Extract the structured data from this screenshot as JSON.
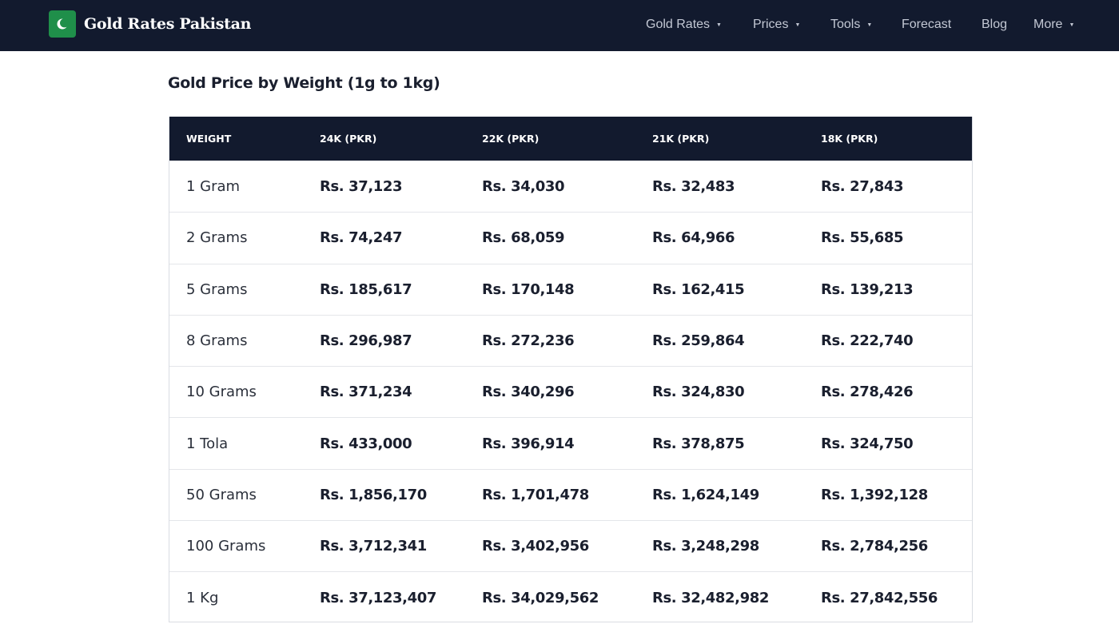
{
  "brand": {
    "name": "Gold Rates Pakistan",
    "logo_icon": "crescent-icon",
    "logo_color": "#1f8f4a"
  },
  "nav": {
    "items": [
      {
        "label": "Gold Rates",
        "dropdown": true
      },
      {
        "label": "Prices",
        "dropdown": true
      },
      {
        "label": "Tools",
        "dropdown": true
      },
      {
        "label": "Forecast",
        "dropdown": false
      },
      {
        "label": "Blog",
        "dropdown": false
      },
      {
        "label": "More",
        "dropdown": true
      }
    ]
  },
  "section": {
    "title": "Gold Price by Weight (1g to 1kg)"
  },
  "table": {
    "headers": [
      "WEIGHT",
      "24K (PKR)",
      "22K (PKR)",
      "21K (PKR)",
      "18K (PKR)"
    ],
    "rows": [
      [
        "1 Gram",
        "Rs. 37,123",
        "Rs. 34,030",
        "Rs. 32,483",
        "Rs. 27,843"
      ],
      [
        "2 Grams",
        "Rs. 74,247",
        "Rs. 68,059",
        "Rs. 64,966",
        "Rs. 55,685"
      ],
      [
        "5 Grams",
        "Rs. 185,617",
        "Rs. 170,148",
        "Rs. 162,415",
        "Rs. 139,213"
      ],
      [
        "8 Grams",
        "Rs. 296,987",
        "Rs. 272,236",
        "Rs. 259,864",
        "Rs. 222,740"
      ],
      [
        "10 Grams",
        "Rs. 371,234",
        "Rs. 340,296",
        "Rs. 324,830",
        "Rs. 278,426"
      ],
      [
        "1 Tola",
        "Rs. 433,000",
        "Rs. 396,914",
        "Rs. 378,875",
        "Rs. 324,750"
      ],
      [
        "50 Grams",
        "Rs. 1,856,170",
        "Rs. 1,701,478",
        "Rs. 1,624,149",
        "Rs. 1,392,128"
      ],
      [
        "100 Grams",
        "Rs. 3,712,341",
        "Rs. 3,402,956",
        "Rs. 3,248,298",
        "Rs. 2,784,256"
      ],
      [
        "1 Kg",
        "Rs. 37,123,407",
        "Rs. 34,029,562",
        "Rs. 32,482,982",
        "Rs. 27,842,556"
      ]
    ]
  },
  "colors": {
    "header_bg": "#121a2e",
    "text": "#1a1f2e"
  }
}
